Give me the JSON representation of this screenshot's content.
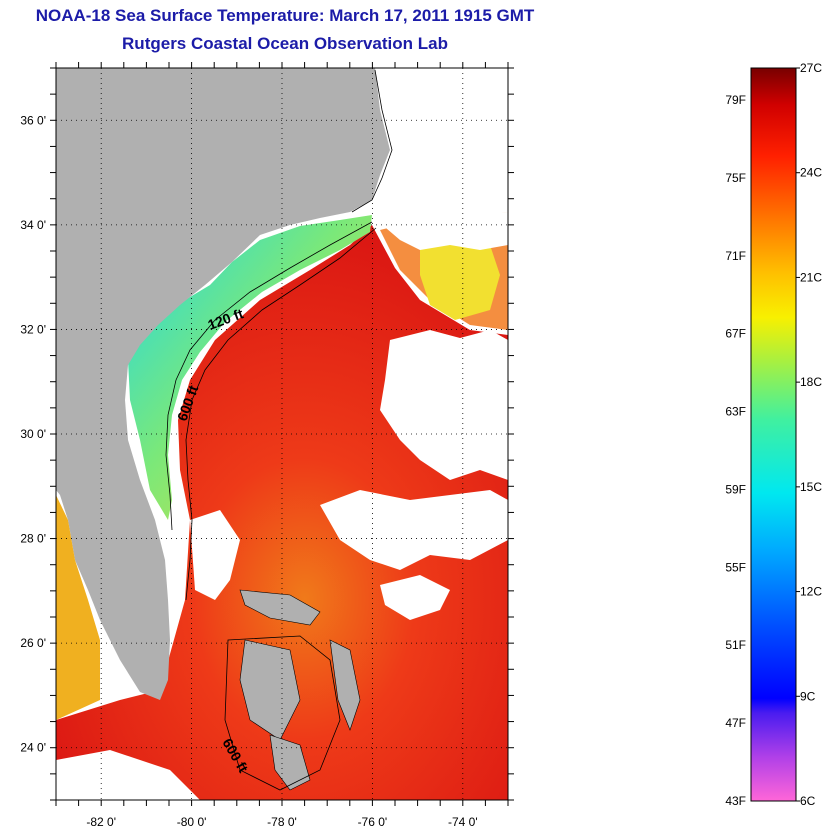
{
  "title": "NOAA-18 Sea Surface Temperature:  March 17, 2011 1915 GMT",
  "subtitle": "Rutgers Coastal Ocean Observation Lab",
  "colors": {
    "title": "#1c1ca8",
    "land": "#b0b0b0",
    "ocean_warm": "#e8201a",
    "ocean_hot": "#d80f0f",
    "shelf_cool": "#30e0e0",
    "shelf_mid": "#7fe87a",
    "cloud": "#ffffff",
    "contour": "#000000"
  },
  "map": {
    "lat_ticks": [
      {
        "value": 36,
        "label": "36 0'"
      },
      {
        "value": 34,
        "label": "34 0'"
      },
      {
        "value": 32,
        "label": "32 0'"
      },
      {
        "value": 30,
        "label": "30 0'"
      },
      {
        "value": 28,
        "label": "28 0'"
      },
      {
        "value": 26,
        "label": "26 0'"
      },
      {
        "value": 24,
        "label": "24 0'"
      }
    ],
    "lon_ticks": [
      {
        "value": -82,
        "label": "-82 0'"
      },
      {
        "value": -80,
        "label": "-80 0'"
      },
      {
        "value": -78,
        "label": "-78 0'"
      },
      {
        "value": -76,
        "label": "-76 0'"
      },
      {
        "value": -74,
        "label": "-74 0'"
      }
    ],
    "lat_range": [
      23,
      37
    ],
    "lon_range": [
      -83,
      -73
    ],
    "contours": [
      {
        "label": "120 ft"
      },
      {
        "label": "600 ft"
      },
      {
        "label": "600 ft"
      }
    ]
  },
  "colorbar": {
    "fahrenheit_labels": [
      "79F",
      "75F",
      "71F",
      "67F",
      "63F",
      "59F",
      "55F",
      "51F",
      "47F",
      "43F"
    ],
    "celsius_labels": [
      "27C",
      "24C",
      "21C",
      "18C",
      "15C",
      "12C",
      "9C",
      "6C"
    ],
    "range_c": [
      6,
      27
    ]
  }
}
